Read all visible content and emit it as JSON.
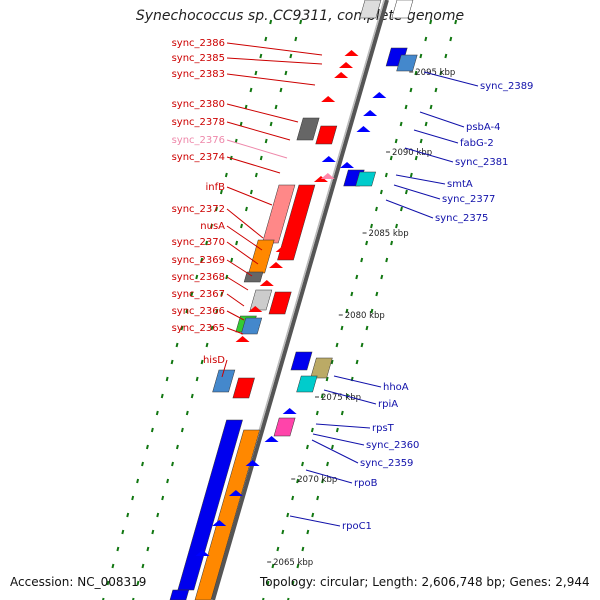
{
  "title": "Synechococcus sp. CC9311, complete genome",
  "accession": "Accession: NC_008319",
  "topology": "Topology: circular; Length: 2,606,748 bp; Genes: 2,944",
  "colors": {
    "forward": "#ff0000",
    "reverse": "#0000ff",
    "axis": "#555555",
    "tick": "#117711",
    "label_left": "#cc0000",
    "label_right": "#1111aa",
    "label_pink": "#ee88aa"
  },
  "kbp_ticks": [
    "2095 kbp",
    "2090 kbp",
    "2085 kbp",
    "2080 kbp",
    "2075 kbp",
    "2070 kbp",
    "2065 kbp"
  ],
  "left_labels": [
    {
      "text": "sync_2386",
      "pink": false
    },
    {
      "text": "sync_2385",
      "pink": false
    },
    {
      "text": "sync_2383",
      "pink": false
    },
    {
      "text": "sync_2380",
      "pink": false
    },
    {
      "text": "sync_2378",
      "pink": false
    },
    {
      "text": "sync_2376",
      "pink": true
    },
    {
      "text": "sync_2374",
      "pink": false
    },
    {
      "text": "infB",
      "pink": false
    },
    {
      "text": "sync_2372",
      "pink": false
    },
    {
      "text": "nusA",
      "pink": false
    },
    {
      "text": "sync_2370",
      "pink": false
    },
    {
      "text": "sync_2369",
      "pink": false
    },
    {
      "text": "sync_2368",
      "pink": false
    },
    {
      "text": "sync_2367",
      "pink": false
    },
    {
      "text": "sync_2366",
      "pink": false
    },
    {
      "text": "sync_2365",
      "pink": false
    },
    {
      "text": "hisD",
      "pink": false
    }
  ],
  "right_labels": [
    {
      "text": "sync_2389"
    },
    {
      "text": "psbA-4"
    },
    {
      "text": "fabG-2"
    },
    {
      "text": "sync_2381"
    },
    {
      "text": "smtA"
    },
    {
      "text": "sync_2377"
    },
    {
      "text": "sync_2375"
    },
    {
      "text": "hhoA"
    },
    {
      "text": "rpiA"
    },
    {
      "text": "rpsT"
    },
    {
      "text": "sync_2360"
    },
    {
      "text": "sync_2359"
    },
    {
      "text": "rpoB"
    },
    {
      "text": "rpoC1"
    }
  ]
}
